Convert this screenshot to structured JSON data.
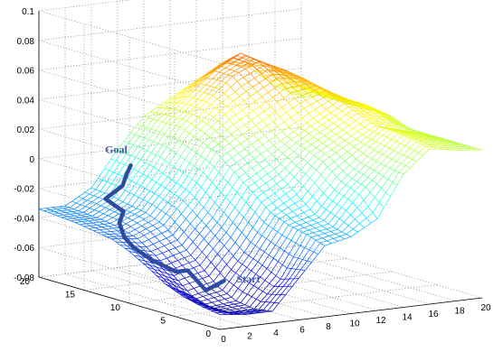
{
  "chart_data": {
    "type": "surface3d",
    "title": "",
    "xlabel": "",
    "ylabel": "",
    "zlabel": "",
    "xlim": [
      0,
      20
    ],
    "ylim": [
      0,
      20
    ],
    "zlim": [
      -0.08,
      0.1
    ],
    "x_ticks": [
      "0",
      "2",
      "4",
      "6",
      "8",
      "10",
      "12",
      "14",
      "16",
      "18",
      "20"
    ],
    "y_ticks": [
      "0",
      "5",
      "10",
      "15",
      "20"
    ],
    "z_ticks": [
      "-0.08",
      "-0.06",
      "-0.04",
      "-0.02",
      "0",
      "0.02",
      "0.04",
      "0.06",
      "0.08",
      "0.1"
    ],
    "grid": true,
    "colormap": "jet",
    "surface": {
      "x": [
        0,
        2,
        4,
        6,
        8,
        10,
        12,
        14,
        16,
        18,
        20
      ],
      "y": [
        0,
        2,
        4,
        6,
        8,
        10,
        12,
        14,
        16,
        18,
        20
      ],
      "z_rows_by_y": [
        [
          -0.07,
          -0.072,
          -0.072,
          -0.052,
          -0.032,
          -0.028,
          -0.018,
          0.01,
          0.025,
          0.022,
          0.02
        ],
        [
          -0.068,
          -0.074,
          -0.074,
          -0.056,
          -0.028,
          -0.025,
          -0.005,
          0.012,
          0.028,
          0.024,
          0.02
        ],
        [
          -0.065,
          -0.074,
          -0.072,
          -0.05,
          -0.025,
          -0.02,
          0.0,
          0.015,
          0.03,
          0.025,
          0.02
        ],
        [
          -0.06,
          -0.07,
          -0.066,
          -0.045,
          -0.02,
          -0.01,
          0.01,
          0.02,
          0.03,
          0.025,
          0.02
        ],
        [
          -0.052,
          -0.06,
          -0.055,
          -0.035,
          -0.01,
          0.0,
          0.015,
          0.025,
          0.035,
          0.03,
          0.02
        ],
        [
          -0.045,
          -0.05,
          -0.045,
          -0.025,
          0.0,
          0.01,
          0.02,
          0.03,
          0.04,
          0.035,
          0.025
        ],
        [
          -0.04,
          -0.042,
          -0.035,
          -0.015,
          0.01,
          0.02,
          0.03,
          0.04,
          0.045,
          0.035,
          0.025
        ],
        [
          -0.038,
          -0.038,
          -0.03,
          -0.01,
          0.015,
          0.03,
          0.04,
          0.05,
          0.048,
          0.035,
          0.025
        ],
        [
          -0.036,
          -0.036,
          -0.028,
          -0.005,
          0.02,
          0.035,
          0.05,
          0.058,
          0.05,
          0.035,
          0.025
        ],
        [
          -0.035,
          -0.035,
          -0.025,
          -0.002,
          0.02,
          0.035,
          0.05,
          0.06,
          0.05,
          0.035,
          0.025
        ],
        [
          -0.034,
          -0.034,
          -0.024,
          0.0,
          0.02,
          0.03,
          0.04,
          0.05,
          0.045,
          0.03,
          0.02
        ]
      ]
    },
    "path": {
      "color": "#2f4ba0",
      "x": [
        1,
        1,
        1,
        1.5,
        1,
        1,
        1,
        2,
        3,
        3,
        5,
        6,
        7
      ],
      "y": [
        1,
        3,
        5,
        7,
        9,
        11,
        12,
        14,
        15,
        17,
        18,
        19,
        20
      ],
      "z": [
        -0.05,
        -0.06,
        -0.05,
        -0.055,
        -0.05,
        -0.045,
        -0.04,
        -0.035,
        -0.03,
        -0.025,
        -0.02,
        -0.015,
        -0.012
      ]
    },
    "annotations": [
      {
        "text": "Goal",
        "x": 7,
        "y": 20,
        "z": -0.012
      },
      {
        "text": "Start",
        "x": 1,
        "y": 1,
        "z": -0.05
      }
    ],
    "colors": {
      "annotation": "#3f5aa6",
      "path": "#2f4ba0",
      "grid": "#7a7a7a"
    }
  }
}
